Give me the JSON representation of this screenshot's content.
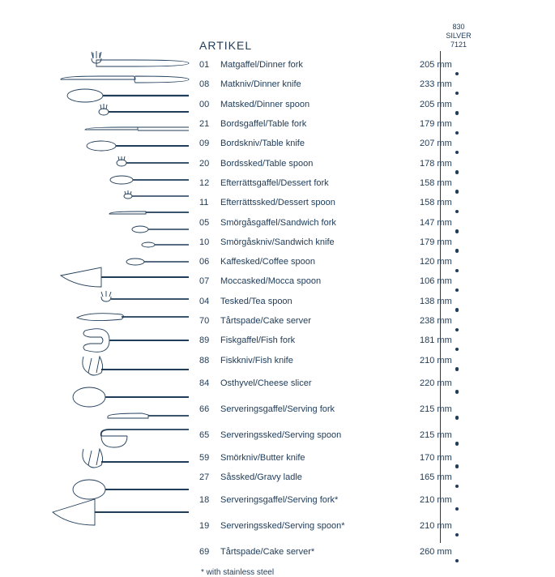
{
  "title": "ARTIKEL",
  "column_header": {
    "line1": "830",
    "line2": "SILVER",
    "line3": "7121"
  },
  "footnote": "* with stainless steel",
  "colors": {
    "ink": "#203d5a",
    "bg": "#ffffff"
  },
  "rows": [
    {
      "code": "01",
      "name": "Matgaffel/Dinner fork",
      "mm": "205 mm",
      "dot": true,
      "tall": false
    },
    {
      "code": "08",
      "name": "Matkniv/Dinner knife",
      "mm": "233 mm",
      "dot": true,
      "tall": false
    },
    {
      "code": "00",
      "name": "Matsked/Dinner spoon",
      "mm": "205 mm",
      "dot": true,
      "tall": false
    },
    {
      "code": "21",
      "name": "Bordsgaffel/Table fork",
      "mm": "179 mm",
      "dot": true,
      "tall": false
    },
    {
      "code": "09",
      "name": "Bordskniv/Table knife",
      "mm": "207 mm",
      "dot": true,
      "tall": false
    },
    {
      "code": "20",
      "name": "Bordssked/Table spoon",
      "mm": "178 mm",
      "dot": true,
      "tall": false
    },
    {
      "code": "12",
      "name": "Efterrättsgaffel/Dessert fork",
      "mm": "158 mm",
      "dot": true,
      "tall": false
    },
    {
      "code": "11",
      "name": "Efterrättssked/Dessert spoon",
      "mm": "158 mm",
      "dot": true,
      "tall": false
    },
    {
      "code": "05",
      "name": "Smörgåsgaffel/Sandwich fork",
      "mm": "147 mm",
      "dot": true,
      "tall": false
    },
    {
      "code": "10",
      "name": "Smörgåskniv/Sandwich knife",
      "mm": "179 mm",
      "dot": true,
      "tall": false
    },
    {
      "code": "06",
      "name": "Kaffesked/Coffee spoon",
      "mm": "120 mm",
      "dot": true,
      "tall": false
    },
    {
      "code": "07",
      "name": "Moccasked/Mocca spoon",
      "mm": "106 mm",
      "dot": true,
      "tall": false
    },
    {
      "code": "04",
      "name": "Tesked/Tea spoon",
      "mm": "138 mm",
      "dot": true,
      "tall": false
    },
    {
      "code": "70",
      "name": "Tårtspade/Cake server",
      "mm": "238 mm",
      "dot": true,
      "tall": false
    },
    {
      "code": "89",
      "name": "Fiskgaffel/Fish fork",
      "mm": "181 mm",
      "dot": true,
      "tall": false
    },
    {
      "code": "88",
      "name": "Fiskkniv/Fish knife",
      "mm": "210 mm",
      "dot": true,
      "tall": false
    },
    {
      "code": "84",
      "name": "Osthyvel/Cheese slicer",
      "mm": "220 mm",
      "dot": true,
      "tall": true
    },
    {
      "code": "66",
      "name": "Serveringsgaffel/Serving fork",
      "mm": "215 mm",
      "dot": true,
      "tall": true
    },
    {
      "code": "65",
      "name": "Serveringssked/Serving spoon",
      "mm": "215 mm",
      "dot": true,
      "tall": true
    },
    {
      "code": "59",
      "name": "Smörkniv/Butter knife",
      "mm": "170 mm",
      "dot": true,
      "tall": false
    },
    {
      "code": "27",
      "name": "Såssked/Gravy ladle",
      "mm": "165 mm",
      "dot": true,
      "tall": false
    },
    {
      "code": "18",
      "name": "Serveringsgaffel/Serving fork*",
      "mm": "210 mm",
      "dot": true,
      "tall": true
    },
    {
      "code": "19",
      "name": "Serveringssked/Serving spoon*",
      "mm": "210 mm",
      "dot": true,
      "tall": true
    },
    {
      "code": "69",
      "name": "Tårtspade/Cake server*",
      "mm": "260 mm",
      "dot": true,
      "tall": true
    }
  ]
}
